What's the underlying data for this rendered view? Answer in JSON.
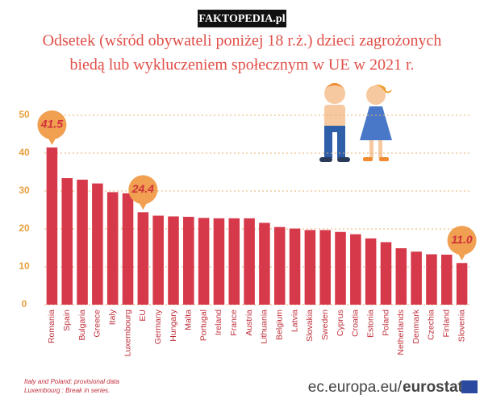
{
  "header": "FAKTOPEDIA.pl",
  "chart_data": {
    "type": "bar",
    "title": [
      "Odsetek (wśród obywateli poniżej 18 r.ż.) dzieci zagrożonych",
      "biedą lub wykluczeniem społecznym w UE w 2021 r."
    ],
    "categories": [
      "Romania",
      "Spain",
      "Bulgaria",
      "Greece",
      "Italy",
      "Luxembourg",
      "EU",
      "Germany",
      "Hungary",
      "Malta",
      "Portugal",
      "Ireland",
      "France",
      "Austria",
      "Lithuania",
      "Belgium",
      "Latvia",
      "Slovakia",
      "Sweden",
      "Cyprus",
      "Croatia",
      "Estonia",
      "Poland",
      "Netherlands",
      "Denmark",
      "Czechia",
      "Finland",
      "Slovenia"
    ],
    "values": [
      41.5,
      33.4,
      33.0,
      32.0,
      29.7,
      29.4,
      24.4,
      23.5,
      23.3,
      23.2,
      22.9,
      22.8,
      22.8,
      22.8,
      21.6,
      20.5,
      20.1,
      19.7,
      19.7,
      19.2,
      18.6,
      17.5,
      16.5,
      14.9,
      14.0,
      13.3,
      13.2,
      11.0
    ],
    "value_labels": [
      "41.5",
      null,
      null,
      null,
      null,
      null,
      "24.4",
      null,
      null,
      null,
      null,
      null,
      null,
      null,
      null,
      null,
      null,
      null,
      null,
      null,
      null,
      null,
      null,
      null,
      null,
      null,
      null,
      "11.0"
    ],
    "color": "#d63a4a",
    "ylim": [
      0,
      50
    ],
    "yticks": [
      0,
      10,
      20,
      30,
      40,
      50
    ],
    "grid": true
  },
  "footnotes": [
    "Italy and Poland: provisional data",
    "Luxembourg : Break in series."
  ],
  "source": [
    "ec.europa.eu/",
    "eurostat"
  ]
}
